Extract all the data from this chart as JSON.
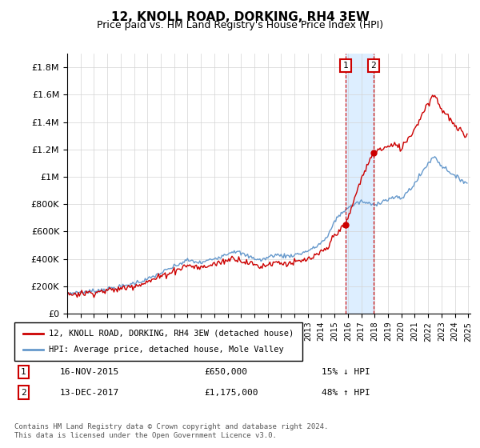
{
  "title": "12, KNOLL ROAD, DORKING, RH4 3EW",
  "subtitle": "Price paid vs. HM Land Registry's House Price Index (HPI)",
  "legend_line1": "12, KNOLL ROAD, DORKING, RH4 3EW (detached house)",
  "legend_line2": "HPI: Average price, detached house, Mole Valley",
  "sale1_date": "16-NOV-2015",
  "sale1_price": 650000,
  "sale1_label": "15% ↓ HPI",
  "sale2_date": "13-DEC-2017",
  "sale2_price": 1175000,
  "sale2_label": "48% ↑ HPI",
  "footer": "Contains HM Land Registry data © Crown copyright and database right 2024.\nThis data is licensed under the Open Government Licence v3.0.",
  "hpi_color": "#6699cc",
  "price_color": "#cc0000",
  "sale_marker_color": "#cc0000",
  "highlight_color": "#ddeeff",
  "vline_color": "#cc0000",
  "ylim": [
    0,
    1900000
  ],
  "yticks": [
    0,
    200000,
    400000,
    600000,
    800000,
    1000000,
    1200000,
    1400000,
    1600000,
    1800000
  ]
}
